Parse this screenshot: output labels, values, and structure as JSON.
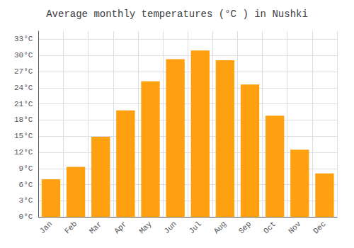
{
  "chart_data": {
    "type": "bar",
    "title": "Average monthly temperatures (°C ) in Nushki",
    "categories": [
      "Jan",
      "Feb",
      "Mar",
      "Apr",
      "May",
      "Jun",
      "Jul",
      "Aug",
      "Sep",
      "Oct",
      "Nov",
      "Dec"
    ],
    "values": [
      7.0,
      9.3,
      14.9,
      19.8,
      25.2,
      29.3,
      30.9,
      29.1,
      24.6,
      18.8,
      12.5,
      8.1
    ],
    "color": "#FFA010",
    "ylim": [
      0,
      34.5
    ],
    "yticks": [
      {
        "value": 0,
        "label": "0°C"
      },
      {
        "value": 3,
        "label": "3°C"
      },
      {
        "value": 6,
        "label": "6°C"
      },
      {
        "value": 9,
        "label": "9°C"
      },
      {
        "value": 12,
        "label": "12°C"
      },
      {
        "value": 15,
        "label": "15°C"
      },
      {
        "value": 18,
        "label": "18°C"
      },
      {
        "value": 21,
        "label": "21°C"
      },
      {
        "value": 24,
        "label": "24°C"
      },
      {
        "value": 27,
        "label": "27°C"
      },
      {
        "value": 30,
        "label": "30°C"
      },
      {
        "value": 33,
        "label": "33°C"
      }
    ],
    "grid": true
  }
}
